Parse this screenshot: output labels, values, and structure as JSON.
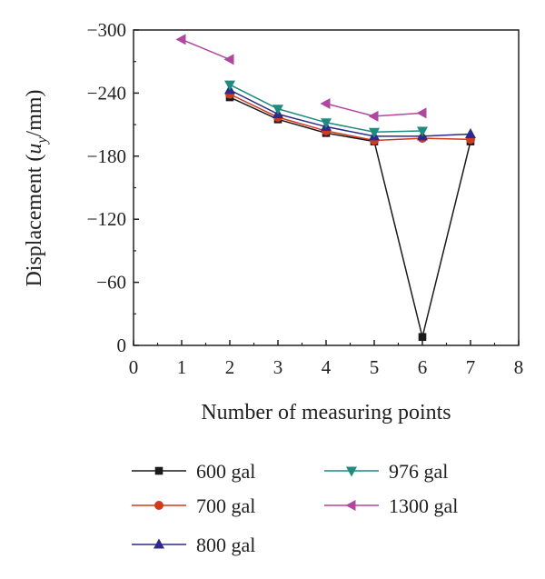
{
  "chart_data": {
    "type": "line",
    "title": "",
    "xlabel": "Number of measuring points",
    "ylabel": {
      "prefix": "Displacement (",
      "var": "u",
      "sub": "y",
      "suffix": "/mm)"
    },
    "xlim": [
      0,
      8
    ],
    "ylim": [
      0,
      -300
    ],
    "x_ticks": [
      "0",
      "1",
      "2",
      "3",
      "4",
      "5",
      "6",
      "7",
      "8"
    ],
    "y_ticks": [
      "0",
      "−60",
      "−120",
      "−180",
      "−240",
      "−300"
    ],
    "y_tick_values": [
      0,
      -60,
      -120,
      -180,
      -240,
      -300
    ],
    "grid": false,
    "legend_position": "bottom",
    "series": [
      {
        "name": "600 gal",
        "color": "#1a1a1a",
        "marker": "square",
        "points": [
          [
            2,
            -236
          ],
          [
            3,
            -215
          ],
          [
            4,
            -202
          ],
          [
            5,
            -194
          ],
          [
            6,
            -8
          ],
          [
            7,
            -194
          ]
        ]
      },
      {
        "name": "700 gal",
        "color": "#d03a1e",
        "marker": "circle",
        "points": [
          [
            2,
            -239
          ],
          [
            3,
            -217
          ],
          [
            4,
            -204
          ],
          [
            5,
            -195
          ],
          [
            6,
            -197
          ],
          [
            7,
            -196
          ]
        ]
      },
      {
        "name": "800 gal",
        "color": "#2d2a8a",
        "marker": "triangle-up",
        "points": [
          [
            2,
            -243
          ],
          [
            3,
            -220
          ],
          [
            4,
            -208
          ],
          [
            5,
            -199
          ],
          [
            6,
            -199
          ],
          [
            7,
            -201
          ]
        ]
      },
      {
        "name": "976 gal",
        "color": "#1f8a7e",
        "marker": "triangle-down",
        "points": [
          [
            2,
            -248
          ],
          [
            3,
            -225
          ],
          [
            4,
            -212
          ],
          [
            5,
            -203
          ],
          [
            6,
            -204
          ]
        ]
      },
      {
        "name": "1300 gal",
        "color": "#b0479e",
        "marker": "triangle-left",
        "segments": [
          [
            [
              1,
              -291
            ],
            [
              2,
              -272
            ]
          ],
          [
            [
              4,
              -230
            ],
            [
              5,
              -218
            ],
            [
              6,
              -221
            ]
          ]
        ]
      }
    ]
  }
}
